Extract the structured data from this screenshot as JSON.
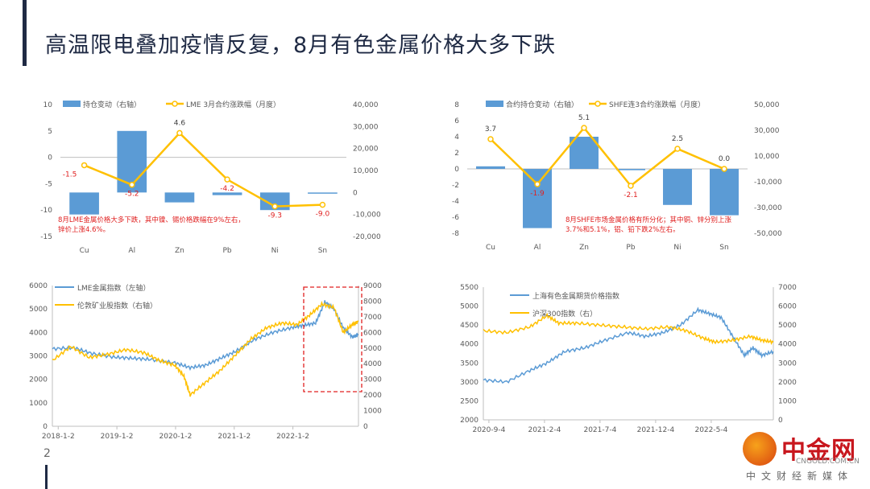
{
  "title": "高温限电叠加疫情反复，8月有色金属价格大多下跌",
  "page_number": "2",
  "logo": {
    "name": "中金网",
    "url": "CNGOLD.COM.CN",
    "tagline": "中文财经新媒体"
  },
  "colors": {
    "blue": "#5b9bd5",
    "yellow": "#ffc000",
    "red": "#e02020",
    "axis": "#595959"
  },
  "chart_data": [
    {
      "type": "bar",
      "id": "lme",
      "categories": [
        "Cu",
        "Al",
        "Zn",
        "Pb",
        "Ni",
        "Sn"
      ],
      "legend": [
        "持仓变动（右轴）",
        "LME 3月合约涨跌幅（月度）"
      ],
      "series": [
        {
          "name": "持仓变动（右轴）",
          "type": "bar",
          "axis": "right",
          "values": [
            -10000,
            28000,
            -4500,
            -1200,
            -8000,
            -500
          ]
        },
        {
          "name": "LME 3月合约涨跌幅（月度）",
          "type": "line",
          "axis": "left",
          "values": [
            -1.5,
            -5.2,
            4.6,
            -4.2,
            -9.3,
            -9.0
          ],
          "labels": [
            "-1.5",
            "-5.2",
            "4.6",
            "-4.2",
            "-9.3",
            "-9.0"
          ]
        }
      ],
      "ylim_left": [
        -15,
        10
      ],
      "yticks_left": [
        "10",
        "5",
        "0",
        "-5",
        "-10",
        "-15"
      ],
      "ylim_right": [
        -20000,
        40000
      ],
      "yticks_right": [
        "40,000",
        "30,000",
        "20,000",
        "10,000",
        "0",
        "-10,000",
        "-20,000"
      ],
      "annotation": [
        "8月LME金属价格大多下跌，其中镍、锡价格跌幅在9%左右，",
        "锌价上涨4.6%。"
      ]
    },
    {
      "type": "bar",
      "id": "shfe",
      "categories": [
        "Cu",
        "Al",
        "Zn",
        "Pb",
        "Ni",
        "Sn"
      ],
      "legend": [
        "合约持仓变动（右轴）",
        "SHFE连3合约涨跌幅（月度）"
      ],
      "series": [
        {
          "name": "合约持仓变动（右轴）",
          "type": "bar",
          "axis": "right",
          "values": [
            2000,
            -46000,
            25000,
            -1000,
            -28000,
            -36000
          ]
        },
        {
          "name": "SHFE连3合约涨跌幅（月度）",
          "type": "line",
          "axis": "left",
          "values": [
            3.7,
            -1.9,
            5.1,
            -2.1,
            2.5,
            0.0
          ],
          "labels": [
            "3.7",
            "-1.9",
            "5.1",
            "-2.1",
            "2.5",
            "0.0"
          ]
        }
      ],
      "ylim_left": [
        -8,
        8
      ],
      "yticks_left": [
        "8",
        "6",
        "4",
        "2",
        "0",
        "-2",
        "-4",
        "-6",
        "-8"
      ],
      "ylim_right": [
        -50000,
        50000
      ],
      "yticks_right": [
        "50,000",
        "30,000",
        "10,000",
        "-10,000",
        "-30,000",
        "-50,000"
      ],
      "annotation": [
        "8月SHFE市场金属价格有所分化；其中铜、锌分别上涨",
        "3.7%和5.1%，铝、铅下跌2%左右。"
      ]
    },
    {
      "type": "line",
      "id": "lme-index",
      "legend": [
        "LME金属指数（左轴）",
        "伦敦矿业股指数（右轴）"
      ],
      "x_ticks": [
        "2018-1-2",
        "2019-1-2",
        "2020-1-2",
        "2021-1-2",
        "2022-1-2"
      ],
      "ylim_left": [
        0,
        6000
      ],
      "yticks_left": [
        "6000",
        "5000",
        "4000",
        "3000",
        "2000",
        "1000",
        "0"
      ],
      "ylim_right": [
        0,
        9000
      ],
      "yticks_right": [
        "9000",
        "8000",
        "7000",
        "6000",
        "5000",
        "4000",
        "3000",
        "2000",
        "1000",
        "0"
      ],
      "series": [
        {
          "name": "LME金属指数（左轴）",
          "axis": "left",
          "t": [
            0,
            0.07,
            0.13,
            0.2,
            0.26,
            0.32,
            0.4,
            0.45,
            0.5,
            0.55,
            0.6,
            0.66,
            0.72,
            0.78,
            0.82,
            0.86,
            0.89,
            0.92,
            0.95,
            0.98,
            1.0
          ],
          "values": [
            3300,
            3350,
            3100,
            2950,
            2900,
            2850,
            2700,
            2500,
            2600,
            2900,
            3200,
            3700,
            4000,
            4200,
            4300,
            4400,
            5300,
            5000,
            4200,
            3800,
            3900
          ]
        },
        {
          "name": "伦敦矿业股指数（右轴）",
          "axis": "right",
          "t": [
            0,
            0.06,
            0.12,
            0.18,
            0.24,
            0.3,
            0.35,
            0.4,
            0.43,
            0.45,
            0.5,
            0.55,
            0.6,
            0.65,
            0.7,
            0.75,
            0.8,
            0.84,
            0.88,
            0.92,
            0.95,
            0.98,
            1.0
          ],
          "values": [
            4200,
            5100,
            4400,
            4600,
            4900,
            4700,
            4200,
            3900,
            3200,
            2000,
            2800,
            3600,
            4600,
            5600,
            6300,
            6600,
            6500,
            7100,
            7800,
            7600,
            6000,
            6500,
            6700
          ]
        }
      ],
      "highlight_box_label": ""
    },
    {
      "type": "line",
      "id": "sh-index",
      "legend": [
        "上海有色金属期货价格指数",
        "沪深300指数（右）"
      ],
      "x_ticks": [
        "2020-9-4",
        "2021-2-4",
        "2021-7-4",
        "2021-12-4",
        "2022-5-4"
      ],
      "ylim_left": [
        2000,
        5500
      ],
      "yticks_left": [
        "5500",
        "5000",
        "4500",
        "4000",
        "3500",
        "3000",
        "2500",
        "2000"
      ],
      "ylim_right": [
        0,
        7000
      ],
      "yticks_right": [
        "7000",
        "6000",
        "5000",
        "4000",
        "3000",
        "2000",
        "1000",
        "0"
      ],
      "series": [
        {
          "name": "上海有色金属期货价格指数",
          "axis": "left",
          "t": [
            0,
            0.08,
            0.16,
            0.22,
            0.28,
            0.35,
            0.42,
            0.5,
            0.56,
            0.62,
            0.68,
            0.74,
            0.78,
            0.82,
            0.86,
            0.9,
            0.93,
            0.96,
            1.0
          ],
          "values": [
            3050,
            3000,
            3300,
            3500,
            3800,
            3900,
            4100,
            4300,
            4200,
            4300,
            4500,
            4900,
            4800,
            4700,
            4200,
            3700,
            3900,
            3700,
            3800
          ]
        },
        {
          "name": "沪深300指数（右）",
          "axis": "right",
          "t": [
            0,
            0.08,
            0.16,
            0.22,
            0.26,
            0.32,
            0.4,
            0.48,
            0.56,
            0.64,
            0.7,
            0.76,
            0.8,
            0.86,
            0.92,
            0.96,
            1.0
          ],
          "values": [
            4700,
            4600,
            4900,
            5500,
            5100,
            5100,
            5000,
            4900,
            4800,
            4900,
            4700,
            4300,
            4100,
            4200,
            4400,
            4200,
            4100
          ]
        }
      ]
    }
  ]
}
